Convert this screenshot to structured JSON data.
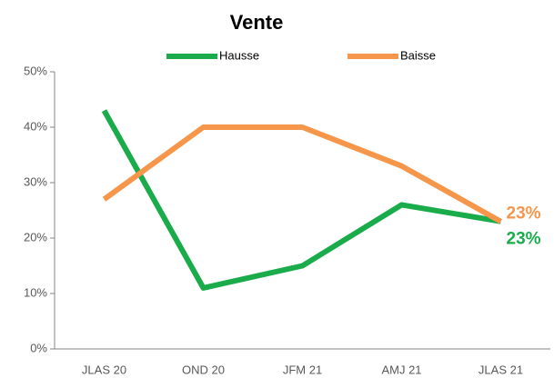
{
  "chart_data": {
    "type": "line",
    "title": "Vente",
    "categories": [
      "JLAS 20",
      "OND 20",
      "JFM 21",
      "AMJ 21",
      "JLAS 21"
    ],
    "series": [
      {
        "name": "Hausse",
        "color": "#1aab4b",
        "values": [
          43,
          11,
          15,
          26,
          23
        ],
        "value_labels": [
          null,
          null,
          null,
          null,
          "23%"
        ]
      },
      {
        "name": "Baisse",
        "color": "#f5964a",
        "values": [
          27,
          40,
          40,
          33,
          23
        ],
        "value_labels": [
          null,
          null,
          null,
          null,
          "23%"
        ]
      }
    ],
    "ylim": [
      0,
      50
    ],
    "yticks": [
      {
        "value": 0,
        "label": "0%"
      },
      {
        "value": 10,
        "label": "10%"
      },
      {
        "value": 20,
        "label": "20%"
      },
      {
        "value": 30,
        "label": "30%"
      },
      {
        "value": 40,
        "label": "40%"
      },
      {
        "value": 50,
        "label": "50%"
      }
    ],
    "legend": "top",
    "grid": false
  }
}
